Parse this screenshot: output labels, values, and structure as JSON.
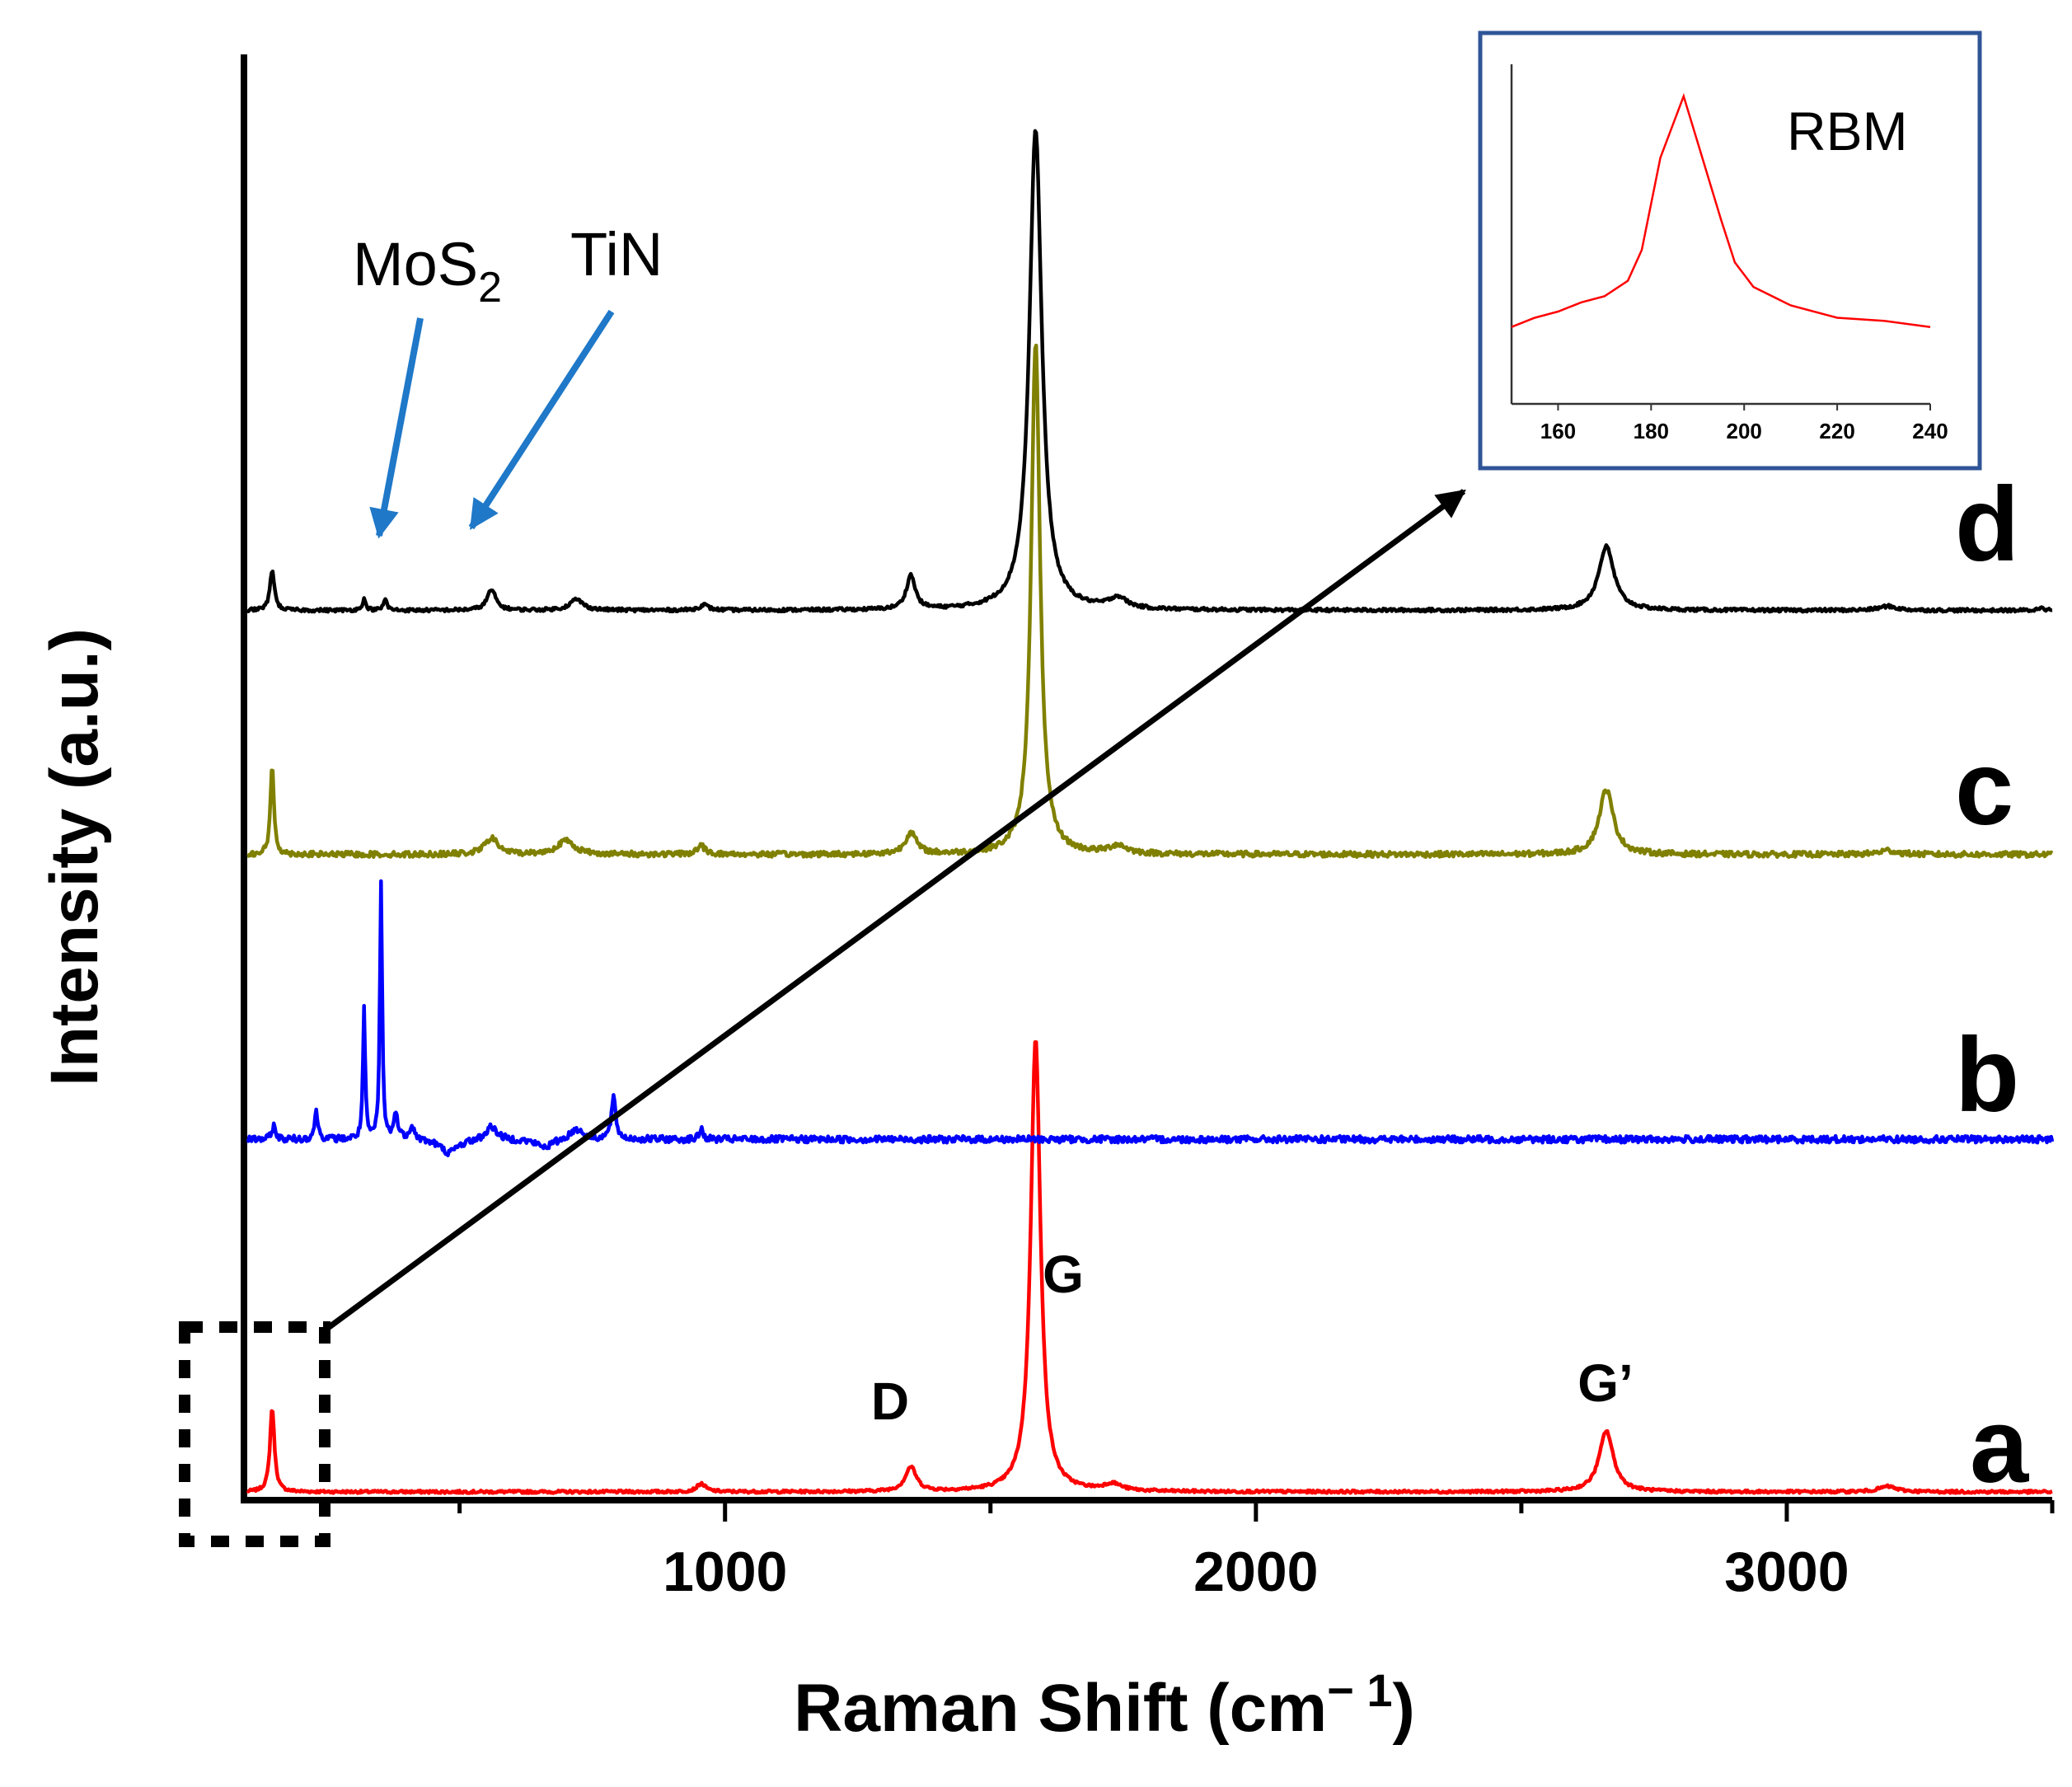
{
  "chart_data": {
    "type": "line",
    "title": "",
    "xlabel": "Raman Shift (cm",
    "xlabel_sup": "− 1",
    "xlabel_close": ")",
    "ylabel": "Intensity (a.u.)",
    "xlim": [
      100,
      3500
    ],
    "ylim": [
      0,
      10.6
    ],
    "x_ticks": [
      "1000",
      "2000",
      "3000"
    ],
    "x_tick_values": [
      1000,
      2000,
      3000
    ],
    "series": [
      {
        "name": "a",
        "color": "#ff0000",
        "baseline": 0.0,
        "peaks": [
          [
            147,
            0.62,
            10
          ],
          [
            955,
            0.06,
            20
          ],
          [
            1350,
            0.18,
            25
          ],
          [
            1585,
            3.35,
            22
          ],
          [
            1730,
            0.05,
            40
          ],
          [
            2660,
            0.45,
            32
          ],
          [
            3190,
            0.04,
            40
          ]
        ],
        "noise": 0.01
      },
      {
        "name": "b",
        "color": "#0000ff",
        "baseline": 2.6,
        "peaks": [
          [
            150,
            0.1,
            8
          ],
          [
            230,
            0.2,
            8
          ],
          [
            320,
            0.95,
            5
          ],
          [
            352,
            1.9,
            5
          ],
          [
            380,
            0.18,
            10
          ],
          [
            410,
            0.1,
            12
          ],
          [
            560,
            0.1,
            25
          ],
          [
            720,
            0.08,
            30
          ],
          [
            790,
            0.3,
            10
          ],
          [
            955,
            0.08,
            8
          ]
        ],
        "dips": [
          [
            480,
            0.1,
            40
          ],
          [
            660,
            0.06,
            40
          ]
        ],
        "noise": 0.025
      },
      {
        "name": "c",
        "color": "#808000",
        "baseline": 4.7,
        "peaks": [
          [
            147,
            0.65,
            8
          ],
          [
            560,
            0.12,
            30
          ],
          [
            700,
            0.1,
            40
          ],
          [
            955,
            0.06,
            20
          ],
          [
            1350,
            0.16,
            25
          ],
          [
            1585,
            3.78,
            20
          ],
          [
            1740,
            0.06,
            40
          ],
          [
            2660,
            0.48,
            32
          ],
          [
            3190,
            0.03,
            40
          ]
        ],
        "noise": 0.02
      },
      {
        "name": "d",
        "color": "#000000",
        "baseline": 6.5,
        "peaks": [
          [
            147,
            0.3,
            10
          ],
          [
            320,
            0.08,
            8
          ],
          [
            360,
            0.08,
            8
          ],
          [
            560,
            0.15,
            20
          ],
          [
            720,
            0.08,
            30
          ],
          [
            960,
            0.04,
            20
          ],
          [
            1350,
            0.25,
            20
          ],
          [
            1585,
            3.55,
            28
          ],
          [
            1740,
            0.08,
            40
          ],
          [
            2660,
            0.47,
            35
          ],
          [
            3190,
            0.03,
            40
          ],
          [
            3480,
            0.03,
            10
          ]
        ],
        "noise": 0.012
      }
    ],
    "series_labels": [
      {
        "text": "a",
        "color": "#ff1a1a"
      },
      {
        "text": "b",
        "color": "#1f4e99"
      },
      {
        "text": "c",
        "color": "#7a5a10"
      },
      {
        "text": "d",
        "color": "#000000"
      }
    ],
    "peak_annotations": [
      {
        "text": "D",
        "x": 1350
      },
      {
        "text": "G",
        "x": 1580
      },
      {
        "text": "G’",
        "x": 2660
      }
    ],
    "arrow_annotations": [
      {
        "text": "MoS",
        "subscript": "2",
        "target_x": 360,
        "color": "#1f78c8"
      },
      {
        "text": "TiN",
        "target_x": 560,
        "color": "#1f78c8"
      }
    ],
    "inset": {
      "title": "RBM",
      "type": "line",
      "color": "#ff0000",
      "xlim": [
        150,
        240
      ],
      "x_ticks": [
        "160",
        "180",
        "200",
        "220",
        "240"
      ],
      "x_tick_values": [
        160,
        180,
        200,
        220,
        240
      ],
      "x": [
        150,
        155,
        160,
        165,
        170,
        175,
        178,
        182,
        187,
        190,
        195,
        198,
        202,
        210,
        220,
        230,
        240
      ],
      "y": [
        0.25,
        0.28,
        0.3,
        0.33,
        0.35,
        0.4,
        0.5,
        0.8,
        1.0,
        0.85,
        0.6,
        0.46,
        0.38,
        0.32,
        0.28,
        0.27,
        0.25
      ],
      "ylim": [
        0.0,
        1.05
      ]
    }
  }
}
